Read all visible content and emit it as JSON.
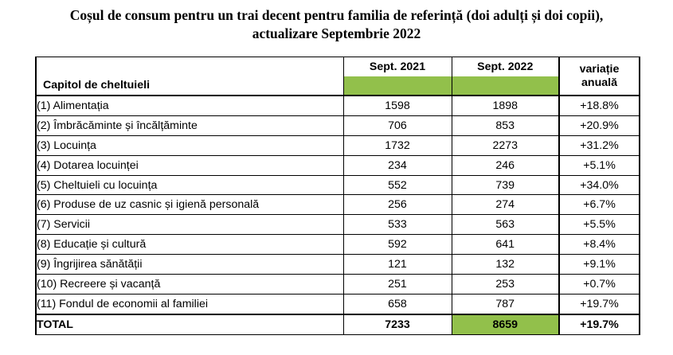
{
  "title": {
    "line1": "Coșul de consum pentru un trai decent pentru familia de referință (doi adulți și doi copii),",
    "line2": "actualizare Septembrie 2022"
  },
  "table": {
    "headers": {
      "category": "Capitol de cheltuieli",
      "year1": "Sept. 2021",
      "year2": "Sept. 2022",
      "variation_line1": "variație",
      "variation_line2": "anuală"
    },
    "rows": [
      {
        "label": "(1) Alimentația",
        "v2021": "1598",
        "v2022": "1898",
        "change": "+18.8%"
      },
      {
        "label": "(2) Îmbrăcăminte și încălțăminte",
        "v2021": "706",
        "v2022": "853",
        "change": "+20.9%"
      },
      {
        "label": "(3) Locuința",
        "v2021": "1732",
        "v2022": "2273",
        "change": "+31.2%"
      },
      {
        "label": "(4) Dotarea locuinței",
        "v2021": "234",
        "v2022": "246",
        "change": "+5.1%"
      },
      {
        "label": "(5) Cheltuieli cu locuința",
        "v2021": "552",
        "v2022": "739",
        "change": "+34.0%"
      },
      {
        "label": "(6) Produse de uz casnic și igienă personală",
        "v2021": "256",
        "v2022": "274",
        "change": "+6.7%"
      },
      {
        "label": "(7) Servicii",
        "v2021": "533",
        "v2022": "563",
        "change": "+5.5%"
      },
      {
        "label": "(8) Educație și cultură",
        "v2021": "592",
        "v2022": "641",
        "change": "+8.4%"
      },
      {
        "label": "(9) Îngrijirea sănătății",
        "v2021": "121",
        "v2022": "132",
        "change": "+9.1%"
      },
      {
        "label": "(10) Recreere și vacanță",
        "v2021": "251",
        "v2022": "253",
        "change": "+0.7%"
      },
      {
        "label": "(11) Fondul de economii al familiei",
        "v2021": "658",
        "v2022": "787",
        "change": "+19.7%"
      }
    ],
    "total": {
      "label": "TOTAL",
      "v2021": "7233",
      "v2022": "8659",
      "change": "+19.7%"
    }
  },
  "colors": {
    "highlight_green": "#92c04b",
    "border": "#000000"
  }
}
